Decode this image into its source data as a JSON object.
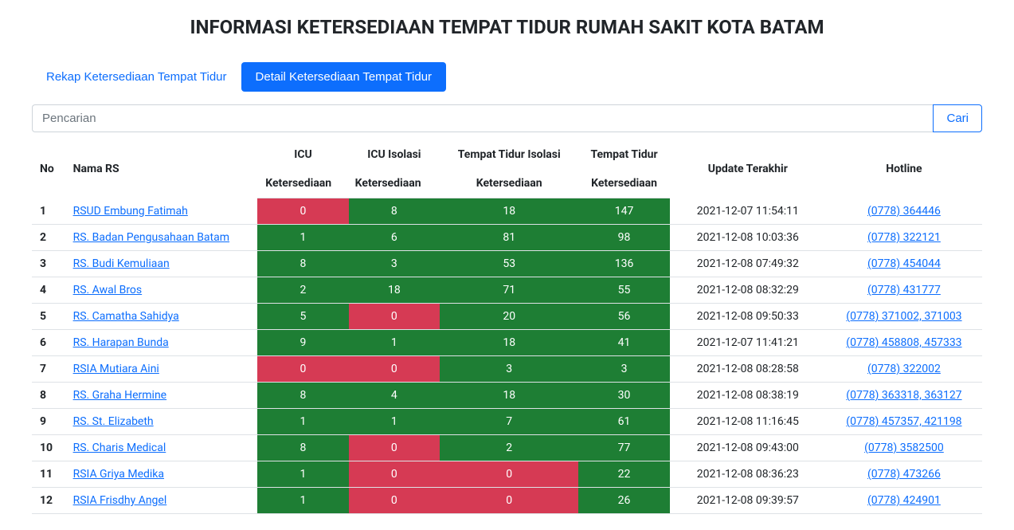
{
  "title": "INFORMASI KETERSEDIAAN TEMPAT TIDUR RUMAH SAKIT KOTA BATAM",
  "tabs": {
    "rekap": "Rekap Ketersediaan Tempat Tidur",
    "detail": "Detail Ketersediaan Tempat Tidur"
  },
  "search": {
    "placeholder": "Pencarian",
    "button": "Cari"
  },
  "colors": {
    "available": "#1e7e34",
    "unavailable": "#d63a54",
    "link": "#0d6efd",
    "primary": "#0d6efd"
  },
  "table": {
    "headers": {
      "no": "No",
      "name": "Nama RS",
      "icu": "ICU",
      "icu_iso": "ICU Isolasi",
      "tt_iso": "Tempat Tidur Isolasi",
      "tt": "Tempat Tidur",
      "sub": "Ketersediaan",
      "update": "Update Terakhir",
      "hotline": "Hotline"
    },
    "rows": [
      {
        "no": "1",
        "name": "RSUD Embung Fatimah",
        "icu": 0,
        "icu_iso": 8,
        "tt_iso": 18,
        "tt": 147,
        "update": "2021-12-07 11:54:11",
        "hotline": "(0778) 364446"
      },
      {
        "no": "2",
        "name": "RS. Badan Pengusahaan Batam",
        "icu": 1,
        "icu_iso": 6,
        "tt_iso": 81,
        "tt": 98,
        "update": "2021-12-08 10:03:36",
        "hotline": "(0778) 322121"
      },
      {
        "no": "3",
        "name": "RS. Budi Kemuliaan",
        "icu": 8,
        "icu_iso": 3,
        "tt_iso": 53,
        "tt": 136,
        "update": "2021-12-08 07:49:32",
        "hotline": "(0778) 454044"
      },
      {
        "no": "4",
        "name": "RS. Awal Bros",
        "icu": 2,
        "icu_iso": 18,
        "tt_iso": 71,
        "tt": 55,
        "update": "2021-12-08 08:32:29",
        "hotline": "(0778) 431777"
      },
      {
        "no": "5",
        "name": "RS. Camatha Sahidya",
        "icu": 5,
        "icu_iso": 0,
        "tt_iso": 20,
        "tt": 56,
        "update": "2021-12-08 09:50:33",
        "hotline": "(0778) 371002, 371003"
      },
      {
        "no": "6",
        "name": "RS. Harapan Bunda",
        "icu": 9,
        "icu_iso": 1,
        "tt_iso": 18,
        "tt": 41,
        "update": "2021-12-07 11:41:21",
        "hotline": "(0778) 458808, 457333"
      },
      {
        "no": "7",
        "name": "RSIA Mutiara Aini",
        "icu": 0,
        "icu_iso": 0,
        "tt_iso": 3,
        "tt": 3,
        "update": "2021-12-08 08:28:58",
        "hotline": "(0778) 322002"
      },
      {
        "no": "8",
        "name": "RS. Graha Hermine",
        "icu": 8,
        "icu_iso": 4,
        "tt_iso": 18,
        "tt": 30,
        "update": "2021-12-08 08:38:19",
        "hotline": "(0778) 363318, 363127"
      },
      {
        "no": "9",
        "name": "RS. St. Elizabeth",
        "icu": 1,
        "icu_iso": 1,
        "tt_iso": 7,
        "tt": 61,
        "update": "2021-12-08 11:16:45",
        "hotline": "(0778) 457357, 421198"
      },
      {
        "no": "10",
        "name": "RS. Charis Medical",
        "icu": 8,
        "icu_iso": 0,
        "tt_iso": 2,
        "tt": 77,
        "update": "2021-12-08 09:43:00",
        "hotline": "(0778) 3582500"
      },
      {
        "no": "11",
        "name": "RSIA Griya Medika",
        "icu": 1,
        "icu_iso": 0,
        "tt_iso": 0,
        "tt": 22,
        "update": "2021-12-08 08:36:23",
        "hotline": "(0778) 473266"
      },
      {
        "no": "12",
        "name": "RSIA Frisdhy Angel",
        "icu": 1,
        "icu_iso": 0,
        "tt_iso": 0,
        "tt": 26,
        "update": "2021-12-08 09:39:57",
        "hotline": "(0778) 424901"
      }
    ]
  }
}
